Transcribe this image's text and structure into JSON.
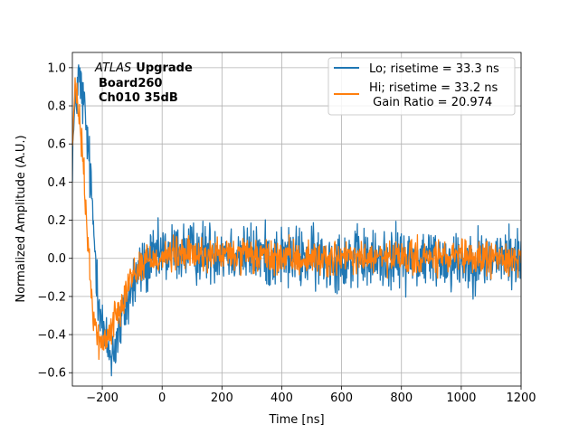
{
  "chart_data": {
    "type": "line",
    "xlabel": "Time [ns]",
    "ylabel": "Normalized Amplitude (A.U.)",
    "xlim": [
      -300,
      1200
    ],
    "ylim": [
      -0.67,
      1.08
    ],
    "xticks": [
      -200,
      0,
      200,
      400,
      600,
      800,
      1000,
      1200
    ],
    "yticks": [
      -0.6,
      -0.4,
      -0.2,
      0.0,
      0.2,
      0.4,
      0.6,
      0.8,
      1.0
    ],
    "xtick_labels": [
      "−200",
      "0",
      "200",
      "400",
      "600",
      "800",
      "1000",
      "1200"
    ],
    "ytick_labels": [
      "−0.6",
      "−0.4",
      "−0.2",
      "0.0",
      "0.2",
      "0.4",
      "0.6",
      "0.8",
      "1.0"
    ],
    "grid": true,
    "legend_position": "top-right",
    "annotation": {
      "atlas": "ATLAS",
      "upgrade": "Upgrade",
      "board": "Board260",
      "channel": "Ch010 35dB"
    },
    "gain_ratio_label": " Gain Ratio = 20.974",
    "series": [
      {
        "name": "Lo; risetime = 33.3 ns",
        "color": "#1f77b4",
        "x": [
          -300,
          -290,
          -280,
          -270,
          -260,
          -250,
          -240,
          -230,
          -220,
          -210,
          -200,
          -190,
          -180,
          -170,
          -160,
          -150,
          -140,
          -130,
          -120,
          -110,
          -100,
          -80,
          -60,
          -40,
          -20,
          0,
          50,
          100,
          200,
          300,
          400,
          500,
          600,
          700,
          800,
          900,
          1000,
          1100,
          1200
        ],
        "values": [
          0.55,
          0.8,
          0.95,
          0.88,
          0.78,
          0.62,
          0.42,
          0.18,
          -0.05,
          -0.22,
          -0.35,
          -0.44,
          -0.48,
          -0.5,
          -0.47,
          -0.42,
          -0.36,
          -0.3,
          -0.25,
          -0.2,
          -0.15,
          -0.08,
          -0.04,
          -0.02,
          0.0,
          0.02,
          0.04,
          0.03,
          0.04,
          0.02,
          0.01,
          0.0,
          0.0,
          -0.01,
          0.0,
          0.0,
          -0.01,
          0.0,
          0.0
        ],
        "noise": 0.08
      },
      {
        "name": "Hi; risetime = 33.2 ns",
        "color": "#ff7f0e",
        "x": [
          -300,
          -290,
          -280,
          -270,
          -260,
          -250,
          -240,
          -230,
          -220,
          -210,
          -200,
          -190,
          -180,
          -170,
          -160,
          -150,
          -140,
          -130,
          -120,
          -110,
          -100,
          -80,
          -60,
          -40,
          -20,
          0,
          50,
          100,
          200,
          300,
          400,
          500,
          600,
          700,
          800,
          900,
          1000,
          1100,
          1200
        ],
        "values": [
          0.6,
          0.9,
          0.78,
          0.62,
          0.4,
          0.12,
          -0.12,
          -0.28,
          -0.38,
          -0.44,
          -0.45,
          -0.43,
          -0.4,
          -0.36,
          -0.32,
          -0.28,
          -0.24,
          -0.2,
          -0.16,
          -0.12,
          -0.09,
          -0.05,
          -0.02,
          0.0,
          0.0,
          0.01,
          0.02,
          0.02,
          0.02,
          0.01,
          0.0,
          0.0,
          0.0,
          0.0,
          0.0,
          0.0,
          0.0,
          0.0,
          0.0
        ],
        "noise": 0.045
      }
    ]
  }
}
